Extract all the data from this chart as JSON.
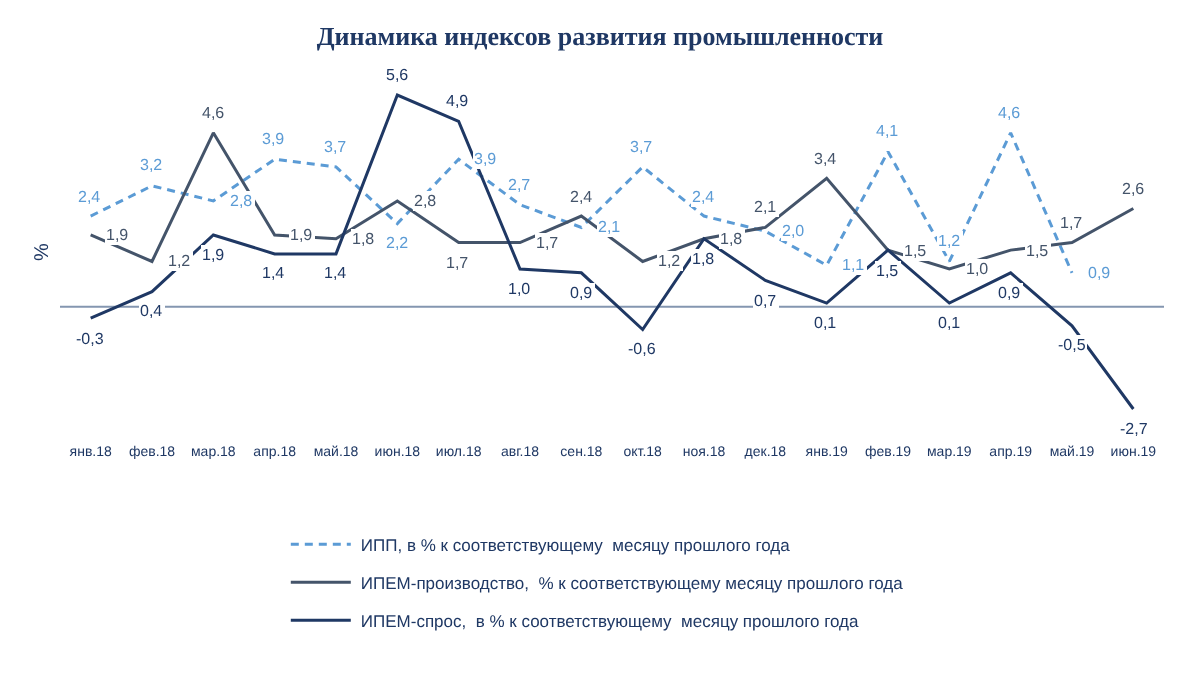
{
  "chart_data": {
    "type": "line",
    "title": "Динамика индексов развития промышленности",
    "ylabel": "%",
    "categories": [
      "янв.18",
      "фев.18",
      "мар.18",
      "апр.18",
      "май.18",
      "июн.18",
      "июл.18",
      "авг.18",
      "сен.18",
      "окт.18",
      "ноя.18",
      "дек.18",
      "янв.19",
      "фев.19",
      "мар.19",
      "апр.19",
      "май.19",
      "июн.19"
    ],
    "series": [
      {
        "name": "ИПП, в % к соответствующему  месяцу прошлого года",
        "color": "#5b9bd5",
        "line_style": "dashed",
        "values": [
          2.4,
          3.2,
          2.8,
          3.9,
          3.7,
          2.2,
          3.9,
          2.7,
          2.1,
          3.7,
          2.4,
          2.0,
          1.1,
          4.1,
          1.2,
          4.6,
          0.9,
          null
        ],
        "value_labels": [
          "2,4",
          "3,2",
          "2,8",
          "3,9",
          "3,7",
          "2,2",
          "3,9",
          "2,7",
          "2,1",
          "3,7",
          "2,4",
          "2,0",
          "1,1",
          "4,1",
          "1,2",
          "4,6",
          "0,9",
          null
        ]
      },
      {
        "name": "ИПЕМ-производство,  % к соответствующему месяцу прошлого года",
        "color": "#44546a",
        "line_style": "solid",
        "values": [
          1.9,
          1.2,
          4.6,
          1.9,
          1.8,
          2.8,
          1.7,
          1.7,
          2.4,
          1.2,
          1.8,
          2.1,
          3.4,
          1.5,
          1.0,
          1.5,
          1.7,
          2.6
        ],
        "value_labels": [
          "1,9",
          "1,2",
          "4,6",
          "1,9",
          "1,8",
          "2,8",
          "1,7",
          "1,7",
          "2,4",
          "1,2",
          "1,8",
          "2,1",
          "3,4",
          "1,5",
          "1,0",
          "1,5",
          "1,7",
          "2,6"
        ]
      },
      {
        "name": "ИПЕМ-спрос,  в % к соответствующему  месяцу прошлого года",
        "color": "#1f3864",
        "line_style": "solid",
        "values": [
          -0.3,
          0.4,
          1.9,
          1.4,
          1.4,
          5.6,
          4.9,
          1.0,
          0.9,
          -0.6,
          1.8,
          0.7,
          0.1,
          1.5,
          0.1,
          0.9,
          -0.5,
          -2.7
        ],
        "value_labels": [
          "-0,3",
          "0,4",
          "1,9",
          "1,4",
          "1,4",
          "5,6",
          "4,9",
          "1,0",
          "0,9",
          "-0,6",
          "1,8",
          "0,7",
          "0,1",
          "1,5",
          "0,1",
          "0,9",
          "-0,5",
          "-2,7"
        ]
      }
    ],
    "ref_lines": [
      {
        "axis": "y",
        "value": 0,
        "color": "#8496b0"
      }
    ],
    "marker": "none",
    "grid": false,
    "legend": "bottom"
  }
}
